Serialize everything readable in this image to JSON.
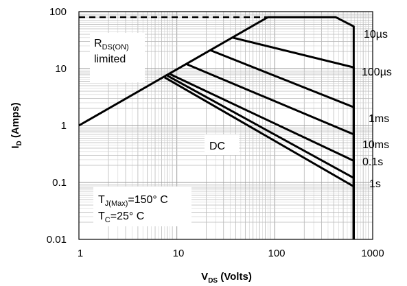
{
  "chart_data": {
    "type": "line",
    "x_scale": "log",
    "y_scale": "log",
    "xlim": [
      1,
      1000
    ],
    "ylim": [
      0.01,
      100
    ],
    "x_ticks": [
      "1",
      "10",
      "100",
      "1000"
    ],
    "y_ticks": [
      "0.01",
      "0.1",
      "1",
      "10",
      "100"
    ],
    "xlabel": {
      "main": "V",
      "sub": "DS",
      "rest": " (Volts)"
    },
    "ylabel": {
      "main": "I",
      "sub": "D",
      "rest": " (Amps)"
    },
    "grid": true,
    "limit_line": {
      "y": 80,
      "x_range": [
        1,
        400
      ]
    },
    "rds_line": {
      "points": [
        [
          1,
          1
        ],
        [
          85,
          80
        ]
      ]
    },
    "series": [
      {
        "name": "10µs",
        "points": [
          [
            85,
            80
          ],
          [
            420,
            80
          ],
          [
            640,
            55
          ],
          [
            640,
            0.01
          ]
        ]
      },
      {
        "name": "100µs",
        "points": [
          [
            37,
            35
          ],
          [
            640,
            10.5
          ],
          [
            640,
            0.01
          ]
        ]
      },
      {
        "name": "1ms",
        "points": [
          [
            22,
            21
          ],
          [
            640,
            2.1
          ],
          [
            640,
            0.01
          ]
        ]
      },
      {
        "name": "10ms",
        "points": [
          [
            12.5,
            12
          ],
          [
            640,
            0.7
          ],
          [
            640,
            0.01
          ]
        ]
      },
      {
        "name": "0.1s",
        "points": [
          [
            8.5,
            8
          ],
          [
            640,
            0.24
          ],
          [
            640,
            0.01
          ]
        ]
      },
      {
        "name": "1s",
        "points": [
          [
            8,
            7.5
          ],
          [
            640,
            0.12
          ],
          [
            640,
            0.01
          ]
        ]
      },
      {
        "name": "DC",
        "points": [
          [
            7.5,
            7
          ],
          [
            640,
            0.085
          ],
          [
            640,
            0.01
          ]
        ]
      }
    ],
    "annotations": {
      "rds": {
        "main": "R",
        "sub": "DS(ON)",
        "line2": "limited"
      },
      "tj": {
        "main": "T",
        "sub": "J(Max)",
        "rest": "=150° C"
      },
      "tc": {
        "main": "T",
        "sub": "C",
        "rest": "=25° C"
      },
      "series_labels": [
        "10µs",
        "100µs",
        "1ms",
        "10ms",
        "0.1s",
        "1s",
        "DC"
      ]
    }
  }
}
